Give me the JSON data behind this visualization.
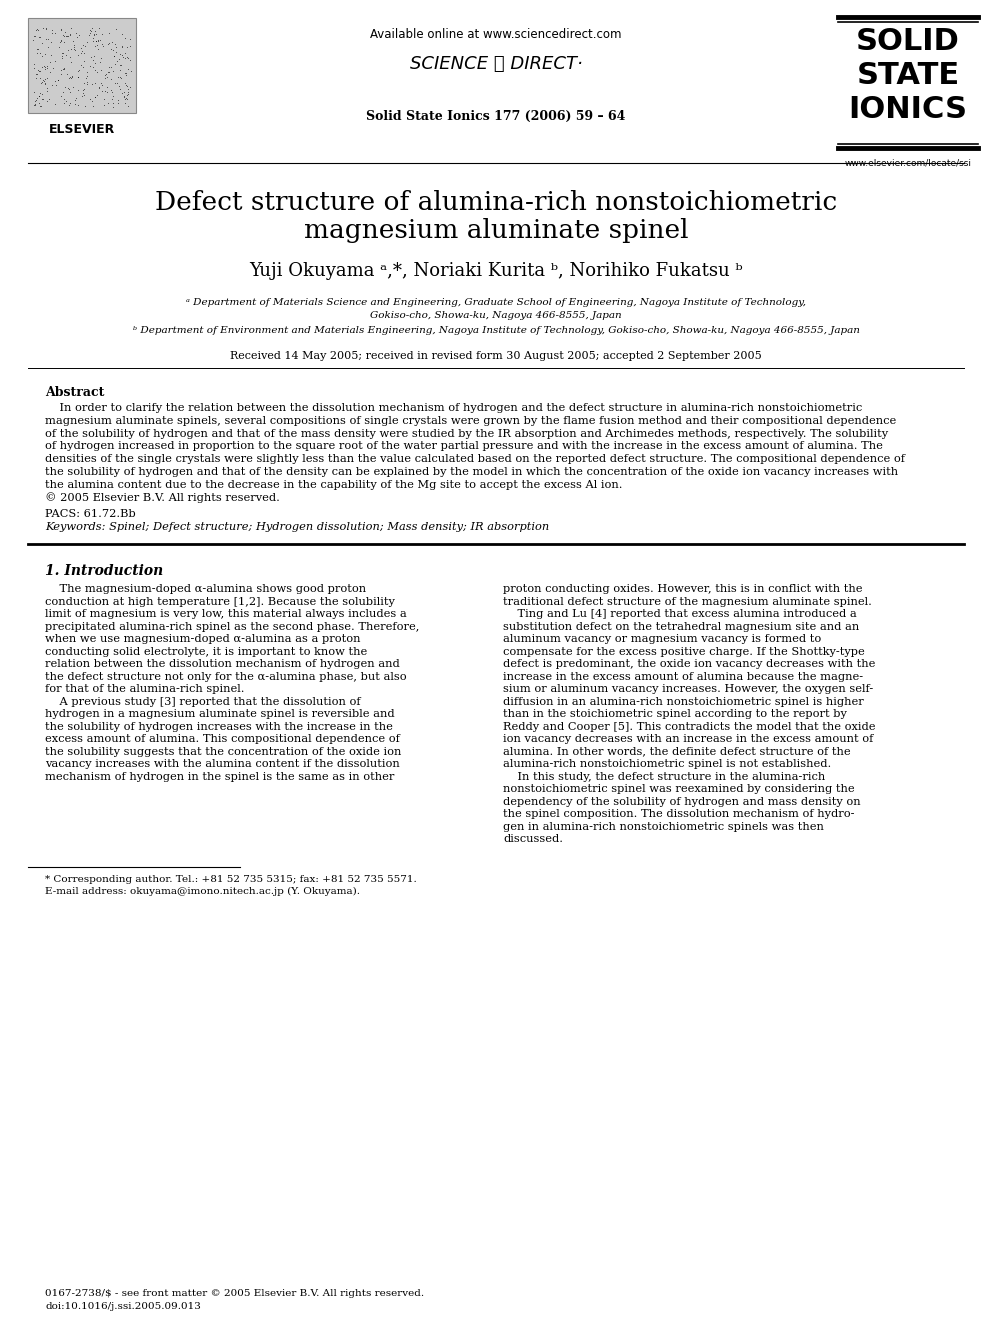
{
  "bg_color": "#ffffff",
  "title_line1": "Defect structure of alumina-rich nonstoichiometric",
  "title_line2": "magnesium aluminate spinel",
  "authors": "Yuji Okuyama ᵃ,*, Noriaki Kurita ᵇ, Norihiko Fukatsu ᵇ",
  "affil_a": "ᵃ Department of Materials Science and Engineering, Graduate School of Engineering, Nagoya Institute of Technology,",
  "affil_a2": "Gokiso-cho, Showa-ku, Nagoya 466-8555, Japan",
  "affil_b": "ᵇ Department of Environment and Materials Engineering, Nagoya Institute of Technology, Gokiso-cho, Showa-ku, Nagoya 466-8555, Japan",
  "received": "Received 14 May 2005; received in revised form 30 August 2005; accepted 2 September 2005",
  "journal_header": "Solid State Ionics 177 (2006) 59 – 64",
  "available_online": "Available online at www.sciencedirect.com",
  "sciencedirect_logo": "SCIENCE ⓐ DIRECT·",
  "journal_name_line1": "SOLID",
  "journal_name_line2": "STATE",
  "journal_name_line3": "IONICS",
  "journal_url": "www.elsevier.com/locate/ssi",
  "elsevier_text": "ELSEVIER",
  "abstract_title": "Abstract",
  "abstract_lines": [
    "    In order to clarify the relation between the dissolution mechanism of hydrogen and the defect structure in alumina-rich nonstoichiometric",
    "magnesium aluminate spinels, several compositions of single crystals were grown by the flame fusion method and their compositional dependence",
    "of the solubility of hydrogen and that of the mass density were studied by the IR absorption and Archimedes methods, respectively. The solubility",
    "of hydrogen increased in proportion to the square root of the water partial pressure and with the increase in the excess amount of alumina. The",
    "densities of the single crystals were slightly less than the value calculated based on the reported defect structure. The compositional dependence of",
    "the solubility of hydrogen and that of the density can be explained by the model in which the concentration of the oxide ion vacancy increases with",
    "the alumina content due to the decrease in the capability of the Mg site to accept the excess Al ion.",
    "© 2005 Elsevier B.V. All rights reserved."
  ],
  "pacs": "PACS: 61.72.Bb",
  "keywords": "Keywords: Spinel; Defect structure; Hydrogen dissolution; Mass density; IR absorption",
  "intro_title": "1. Introduction",
  "intro_col1": [
    "    The magnesium-doped α-alumina shows good proton",
    "conduction at high temperature [1,2]. Because the solubility",
    "limit of magnesium is very low, this material always includes a",
    "precipitated alumina-rich spinel as the second phase. Therefore,",
    "when we use magnesium-doped α-alumina as a proton",
    "conducting solid electrolyte, it is important to know the",
    "relation between the dissolution mechanism of hydrogen and",
    "the defect structure not only for the α-alumina phase, but also",
    "for that of the alumina-rich spinel.",
    "    A previous study [3] reported that the dissolution of",
    "hydrogen in a magnesium aluminate spinel is reversible and",
    "the solubility of hydrogen increases with the increase in the",
    "excess amount of alumina. This compositional dependence of",
    "the solubility suggests that the concentration of the oxide ion",
    "vacancy increases with the alumina content if the dissolution",
    "mechanism of hydrogen in the spinel is the same as in other"
  ],
  "intro_col2": [
    "proton conducting oxides. However, this is in conflict with the",
    "traditional defect structure of the magnesium aluminate spinel.",
    "    Ting and Lu [4] reported that excess alumina introduced a",
    "substitution defect on the tetrahedral magnesium site and an",
    "aluminum vacancy or magnesium vacancy is formed to",
    "compensate for the excess positive charge. If the Shottky-type",
    "defect is predominant, the oxide ion vacancy decreases with the",
    "increase in the excess amount of alumina because the magne-",
    "sium or aluminum vacancy increases. However, the oxygen self-",
    "diffusion in an alumina-rich nonstoichiometric spinel is higher",
    "than in the stoichiometric spinel according to the report by",
    "Reddy and Cooper [5]. This contradicts the model that the oxide",
    "ion vacancy decreases with an increase in the excess amount of",
    "alumina. In other words, the definite defect structure of the",
    "alumina-rich nonstoichiometric spinel is not established.",
    "    In this study, the defect structure in the alumina-rich",
    "nonstoichiometric spinel was reexamined by considering the",
    "dependency of the solubility of hydrogen and mass density on",
    "the spinel composition. The dissolution mechanism of hydro-",
    "gen in alumina-rich nonstoichiometric spinels was then",
    "discussed."
  ],
  "footnote_corr": "* Corresponding author. Tel.: +81 52 735 5315; fax: +81 52 735 5571.",
  "footnote_email": "E-mail address: okuyama@imono.nitech.ac.jp (Y. Okuyama).",
  "footnote_issn": "0167-2738/$ - see front matter © 2005 Elsevier B.V. All rights reserved.",
  "footnote_doi": "doi:10.1016/j.ssi.2005.09.013"
}
